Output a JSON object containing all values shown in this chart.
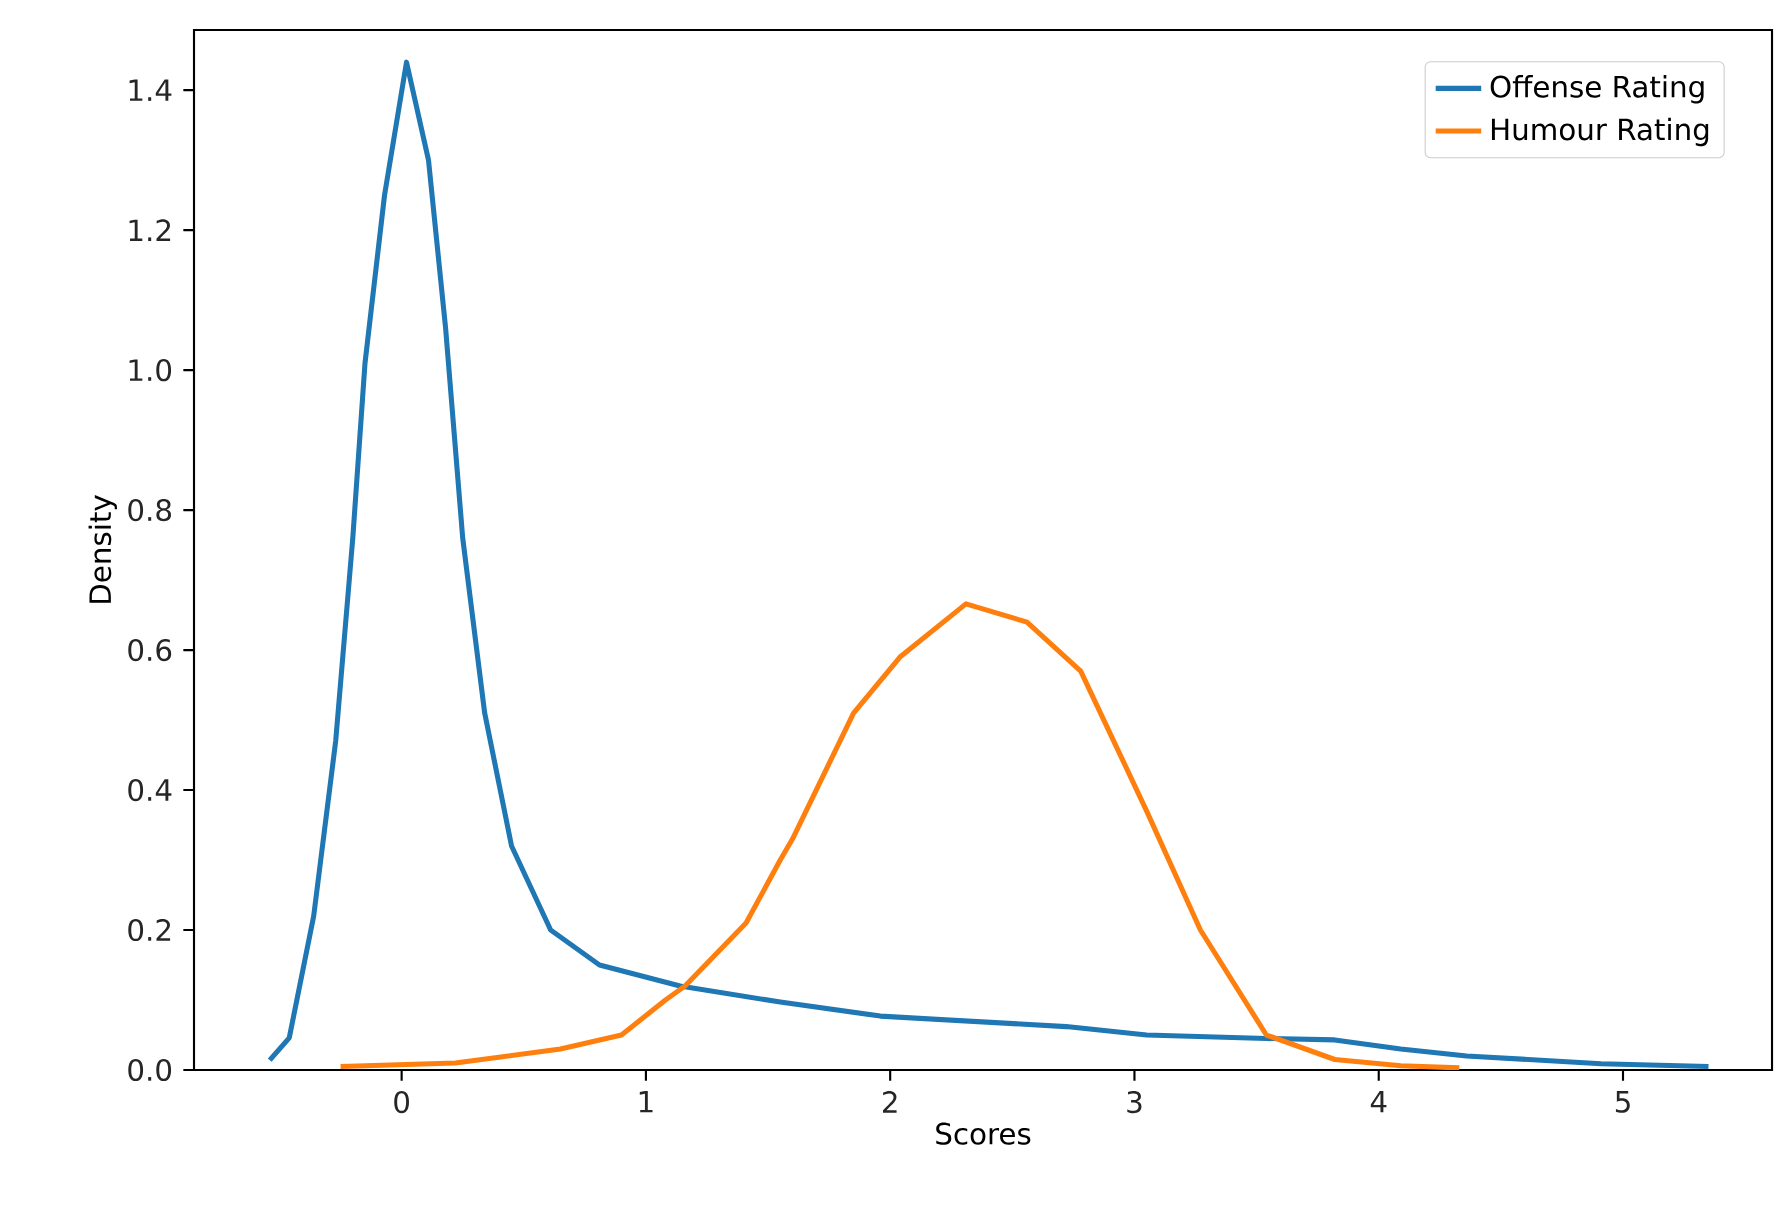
{
  "chart_data": {
    "type": "line",
    "xlabel": "Scores",
    "ylabel": "Density",
    "xlim": [
      -0.85,
      5.61
    ],
    "ylim": [
      0,
      1.486
    ],
    "xticks": [
      0,
      1,
      2,
      3,
      4,
      5
    ],
    "yticks": [
      {
        "value": 0,
        "label": "0.0"
      },
      {
        "value": 0.2,
        "label": "0.2"
      },
      {
        "value": 0.4,
        "label": "0.4"
      },
      {
        "value": 0.6,
        "label": "0.6"
      },
      {
        "value": 0.8,
        "label": "0.8"
      },
      {
        "value": 1.0,
        "label": "1.0"
      },
      {
        "value": 1.2,
        "label": "1.2"
      },
      {
        "value": 1.4,
        "label": "1.4"
      }
    ],
    "legend": "top right",
    "grid": false,
    "marker": "none",
    "line_style": "solid",
    "series": [
      {
        "name": "Offense Rating",
        "color": "#1f77b4",
        "x": [
          -0.54,
          -0.46,
          -0.36,
          -0.27,
          -0.2,
          -0.15,
          -0.07,
          0.02,
          0.11,
          0.18,
          0.25,
          0.34,
          0.45,
          0.61,
          0.81,
          1.14,
          1.55,
          1.96,
          2.72,
          3.05,
          3.54,
          3.82,
          4.09,
          4.36,
          4.91,
          5.35
        ],
        "values": [
          0.014,
          0.046,
          0.22,
          0.47,
          0.76,
          1.01,
          1.25,
          1.44,
          1.3,
          1.06,
          0.76,
          0.51,
          0.32,
          0.2,
          0.15,
          0.12,
          0.097,
          0.077,
          0.062,
          0.05,
          0.045,
          0.043,
          0.03,
          0.02,
          0.009,
          0.005
        ]
      },
      {
        "name": "Humour Rating",
        "color": "#ff7f0e",
        "x": [
          -0.25,
          0.22,
          0.65,
          0.9,
          1.08,
          1.16,
          1.41,
          1.55,
          1.6,
          1.85,
          2.04,
          2.31,
          2.56,
          2.78,
          3.05,
          3.27,
          3.54,
          3.82,
          4.09,
          4.33
        ],
        "values": [
          0.005,
          0.01,
          0.03,
          0.05,
          0.1,
          0.12,
          0.21,
          0.3,
          0.33,
          0.51,
          0.59,
          0.666,
          0.64,
          0.57,
          0.37,
          0.2,
          0.05,
          0.015,
          0.006,
          0.003
        ]
      }
    ]
  }
}
